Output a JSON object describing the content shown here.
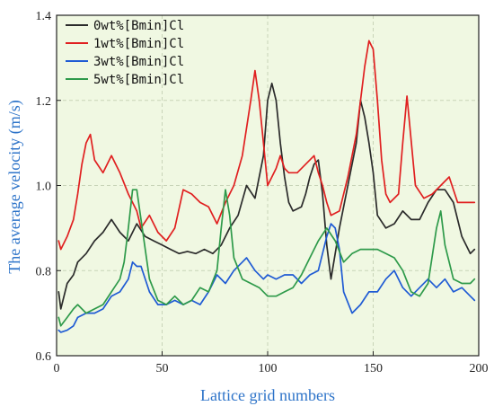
{
  "chart_data": {
    "type": "line",
    "title": "",
    "xlabel": "Lattice grid numbers",
    "ylabel": "The average velocity (m/s)",
    "xlim": [
      0,
      200
    ],
    "ylim": [
      0.6,
      1.4
    ],
    "xticks": [
      0,
      50,
      100,
      150,
      200
    ],
    "yticks": [
      0.6,
      0.8,
      1.0,
      1.2,
      1.4
    ],
    "xtick_labels": [
      "0",
      "50",
      "100",
      "150",
      "200"
    ],
    "ytick_labels": [
      "0.6",
      "0.8",
      "1.0",
      "1.2",
      "1.4"
    ],
    "grid": "dashed",
    "background": "#f0f8e2",
    "legend_position": "top-left",
    "series": [
      {
        "name": "0wt%[Bmin]Cl",
        "color": "#2b2b2b",
        "x": [
          1,
          2,
          5,
          8,
          10,
          14,
          18,
          22,
          26,
          30,
          34,
          38,
          42,
          46,
          50,
          54,
          58,
          62,
          66,
          70,
          74,
          78,
          82,
          86,
          90,
          94,
          98,
          100,
          102,
          104,
          106,
          108,
          110,
          112,
          116,
          118,
          120,
          122,
          124,
          126,
          128,
          130,
          134,
          138,
          142,
          144,
          146,
          148,
          150,
          152,
          156,
          160,
          164,
          168,
          172,
          176,
          180,
          184,
          188,
          192,
          196,
          198
        ],
        "values": [
          0.75,
          0.71,
          0.77,
          0.79,
          0.82,
          0.84,
          0.87,
          0.89,
          0.92,
          0.89,
          0.87,
          0.91,
          0.88,
          0.87,
          0.86,
          0.85,
          0.84,
          0.845,
          0.84,
          0.85,
          0.84,
          0.86,
          0.9,
          0.93,
          1.0,
          0.97,
          1.07,
          1.2,
          1.24,
          1.2,
          1.1,
          1.02,
          0.96,
          0.94,
          0.95,
          0.98,
          1.02,
          1.05,
          1.06,
          0.98,
          0.86,
          0.78,
          0.9,
          1.0,
          1.1,
          1.2,
          1.16,
          1.1,
          1.03,
          0.93,
          0.9,
          0.91,
          0.94,
          0.92,
          0.92,
          0.96,
          0.99,
          0.99,
          0.96,
          0.88,
          0.84,
          0.85
        ]
      },
      {
        "name": "1wt%[Bmin]Cl",
        "color": "#e02020",
        "x": [
          1,
          2,
          5,
          8,
          10,
          12,
          14,
          16,
          18,
          22,
          26,
          30,
          34,
          38,
          40,
          44,
          48,
          52,
          56,
          60,
          64,
          68,
          72,
          76,
          80,
          84,
          88,
          92,
          94,
          96,
          98,
          100,
          102,
          104,
          106,
          108,
          110,
          114,
          118,
          122,
          124,
          126,
          128,
          130,
          134,
          138,
          142,
          144,
          146,
          148,
          150,
          152,
          154,
          156,
          158,
          162,
          164,
          166,
          170,
          174,
          178,
          182,
          186,
          190,
          194,
          198
        ],
        "values": [
          0.87,
          0.85,
          0.88,
          0.92,
          0.98,
          1.05,
          1.1,
          1.12,
          1.06,
          1.03,
          1.07,
          1.03,
          0.98,
          0.94,
          0.9,
          0.93,
          0.89,
          0.87,
          0.9,
          0.99,
          0.98,
          0.96,
          0.95,
          0.91,
          0.96,
          1.0,
          1.07,
          1.2,
          1.27,
          1.2,
          1.1,
          1.0,
          1.02,
          1.04,
          1.07,
          1.04,
          1.03,
          1.03,
          1.05,
          1.07,
          1.03,
          1.0,
          0.96,
          0.93,
          0.94,
          1.02,
          1.12,
          1.2,
          1.28,
          1.34,
          1.32,
          1.2,
          1.06,
          0.98,
          0.96,
          0.98,
          1.1,
          1.21,
          1.0,
          0.97,
          0.98,
          1.0,
          1.02,
          0.96,
          0.96,
          0.96
        ]
      },
      {
        "name": "3wt%[Bmin]Cl",
        "color": "#1f5bd4",
        "x": [
          1,
          2,
          5,
          8,
          10,
          14,
          18,
          22,
          26,
          30,
          34,
          36,
          38,
          40,
          44,
          48,
          52,
          56,
          60,
          64,
          68,
          72,
          76,
          80,
          84,
          88,
          90,
          94,
          98,
          100,
          104,
          108,
          112,
          116,
          120,
          124,
          128,
          130,
          132,
          134,
          136,
          140,
          144,
          148,
          152,
          156,
          160,
          164,
          168,
          172,
          176,
          180,
          184,
          188,
          192,
          196,
          198
        ],
        "values": [
          0.66,
          0.655,
          0.66,
          0.67,
          0.69,
          0.7,
          0.7,
          0.71,
          0.74,
          0.75,
          0.78,
          0.82,
          0.81,
          0.81,
          0.75,
          0.72,
          0.72,
          0.73,
          0.72,
          0.73,
          0.72,
          0.75,
          0.79,
          0.77,
          0.8,
          0.82,
          0.83,
          0.8,
          0.78,
          0.79,
          0.78,
          0.79,
          0.79,
          0.77,
          0.79,
          0.8,
          0.88,
          0.91,
          0.9,
          0.85,
          0.75,
          0.7,
          0.72,
          0.75,
          0.75,
          0.78,
          0.8,
          0.76,
          0.74,
          0.76,
          0.78,
          0.76,
          0.78,
          0.75,
          0.76,
          0.74,
          0.73
        ]
      },
      {
        "name": "5wt%[Bmin]Cl",
        "color": "#2e9a4a",
        "x": [
          1,
          2,
          5,
          8,
          10,
          14,
          18,
          22,
          26,
          30,
          32,
          34,
          36,
          38,
          40,
          44,
          48,
          52,
          56,
          60,
          64,
          68,
          72,
          76,
          78,
          80,
          82,
          84,
          88,
          92,
          96,
          100,
          104,
          108,
          112,
          116,
          120,
          124,
          128,
          132,
          136,
          140,
          144,
          148,
          152,
          156,
          160,
          164,
          168,
          172,
          176,
          180,
          182,
          184,
          188,
          192,
          196,
          198
        ],
        "values": [
          0.69,
          0.67,
          0.69,
          0.71,
          0.72,
          0.7,
          0.71,
          0.72,
          0.75,
          0.78,
          0.82,
          0.9,
          0.99,
          0.99,
          0.92,
          0.78,
          0.73,
          0.72,
          0.74,
          0.72,
          0.73,
          0.76,
          0.75,
          0.8,
          0.9,
          0.99,
          0.93,
          0.83,
          0.78,
          0.77,
          0.76,
          0.74,
          0.74,
          0.75,
          0.76,
          0.79,
          0.83,
          0.87,
          0.9,
          0.87,
          0.82,
          0.84,
          0.85,
          0.85,
          0.85,
          0.84,
          0.83,
          0.8,
          0.75,
          0.74,
          0.77,
          0.9,
          0.94,
          0.86,
          0.78,
          0.77,
          0.77,
          0.78
        ]
      }
    ]
  }
}
